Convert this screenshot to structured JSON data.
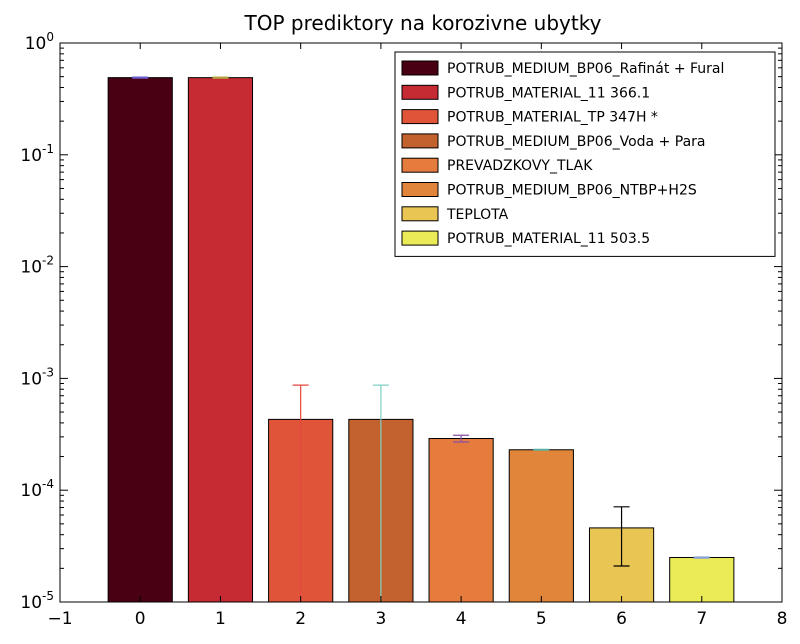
{
  "chart_data": {
    "type": "bar",
    "title": "TOP prediktory na korozivne ubytky",
    "xlabel": "",
    "ylabel": "",
    "yscale": "log",
    "xlim": [
      -1,
      8
    ],
    "ylim": [
      1e-05,
      1
    ],
    "x_ticks": [
      -1,
      0,
      1,
      2,
      3,
      4,
      5,
      6,
      7,
      8
    ],
    "x_tick_labels": [
      "−1",
      "0",
      "1",
      "2",
      "3",
      "4",
      "5",
      "6",
      "7",
      "8"
    ],
    "y_ticks": [
      1,
      0.1,
      0.01,
      0.001,
      0.0001,
      1e-05
    ],
    "y_tick_labels": [
      {
        "base": "10",
        "exp": "0"
      },
      {
        "base": "10",
        "exp": "-1"
      },
      {
        "base": "10",
        "exp": "-2"
      },
      {
        "base": "10",
        "exp": "-3"
      },
      {
        "base": "10",
        "exp": "-4"
      },
      {
        "base": "10",
        "exp": "-5"
      }
    ],
    "grid": false,
    "legend_position": "top-right",
    "bars": [
      {
        "x": 0,
        "value": 0.49,
        "error": 0.005,
        "color": "#4a0013",
        "error_color": "#6a5acd",
        "label": "POTRUB_MEDIUM_BP06_Rafinát + Fural"
      },
      {
        "x": 1,
        "value": 0.49,
        "error": 0.005,
        "color": "#c62a33",
        "error_color": "#b5a642",
        "label": "POTRUB_MATERIAL_11 366.1"
      },
      {
        "x": 2,
        "value": 0.00043,
        "error": 0.00044,
        "color": "#e0553a",
        "error_color": "#e8463c",
        "label": "POTRUB_MATERIAL_TP 347H *"
      },
      {
        "x": 3,
        "value": 0.00043,
        "error": 0.00044,
        "color": "#c4622f",
        "error_color": "#7fd1c6",
        "label": "POTRUB_MEDIUM_BP06_Voda + Para"
      },
      {
        "x": 4,
        "value": 0.00029,
        "error": 2e-05,
        "color": "#e57c3e",
        "error_color": "#8a4fa8",
        "label": "PREVADZKOVY_TLAK"
      },
      {
        "x": 5,
        "value": 0.00023,
        "error": 2e-06,
        "color": "#e0853a",
        "error_color": "#5ab0a0",
        "label": "POTRUB_MEDIUM_BP06_NTBP+H2S"
      },
      {
        "x": 6,
        "value": 4.6e-05,
        "error": 2.5e-05,
        "color": "#e9c553",
        "error_color": "#000000",
        "label": "TEPLOTA"
      },
      {
        "x": 7,
        "value": 2.5e-05,
        "error": 3e-07,
        "color": "#ebeb58",
        "error_color": "#8aa0d8",
        "label": "POTRUB_MATERIAL_11 503.5"
      }
    ]
  }
}
